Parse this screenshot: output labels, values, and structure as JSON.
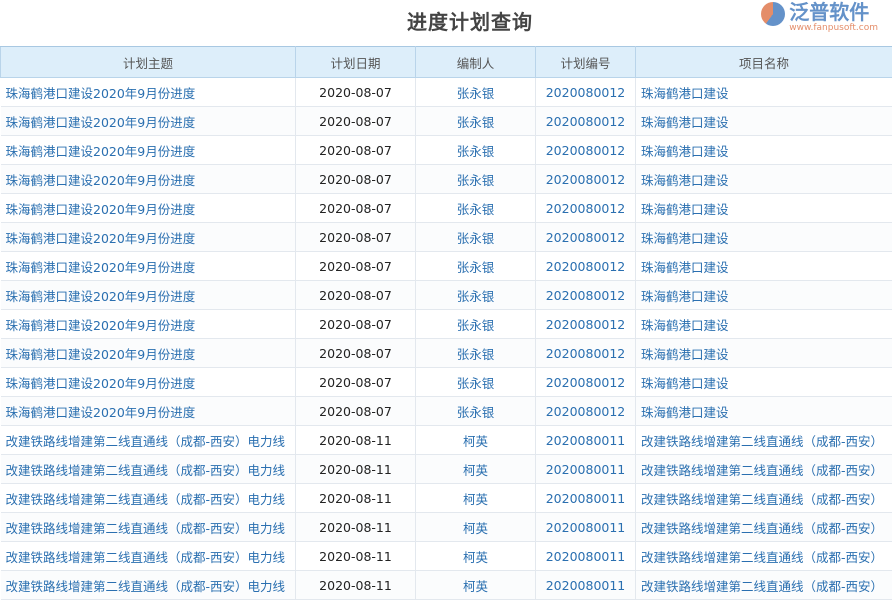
{
  "title": "进度计划查询",
  "columns": [
    "计划主题",
    "计划日期",
    "编制人",
    "计划编号",
    "项目名称"
  ],
  "rows": [
    [
      "珠海鹤港口建设2020年9月份进度",
      "2020-08-07",
      "张永银",
      "2020080012",
      "珠海鹤港口建设"
    ],
    [
      "珠海鹤港口建设2020年9月份进度",
      "2020-08-07",
      "张永银",
      "2020080012",
      "珠海鹤港口建设"
    ],
    [
      "珠海鹤港口建设2020年9月份进度",
      "2020-08-07",
      "张永银",
      "2020080012",
      "珠海鹤港口建设"
    ],
    [
      "珠海鹤港口建设2020年9月份进度",
      "2020-08-07",
      "张永银",
      "2020080012",
      "珠海鹤港口建设"
    ],
    [
      "珠海鹤港口建设2020年9月份进度",
      "2020-08-07",
      "张永银",
      "2020080012",
      "珠海鹤港口建设"
    ],
    [
      "珠海鹤港口建设2020年9月份进度",
      "2020-08-07",
      "张永银",
      "2020080012",
      "珠海鹤港口建设"
    ],
    [
      "珠海鹤港口建设2020年9月份进度",
      "2020-08-07",
      "张永银",
      "2020080012",
      "珠海鹤港口建设"
    ],
    [
      "珠海鹤港口建设2020年9月份进度",
      "2020-08-07",
      "张永银",
      "2020080012",
      "珠海鹤港口建设"
    ],
    [
      "珠海鹤港口建设2020年9月份进度",
      "2020-08-07",
      "张永银",
      "2020080012",
      "珠海鹤港口建设"
    ],
    [
      "珠海鹤港口建设2020年9月份进度",
      "2020-08-07",
      "张永银",
      "2020080012",
      "珠海鹤港口建设"
    ],
    [
      "珠海鹤港口建设2020年9月份进度",
      "2020-08-07",
      "张永银",
      "2020080012",
      "珠海鹤港口建设"
    ],
    [
      "珠海鹤港口建设2020年9月份进度",
      "2020-08-07",
      "张永银",
      "2020080012",
      "珠海鹤港口建设"
    ],
    [
      "改建铁路线增建第二线直通线（成都-西安）电力线",
      "2020-08-11",
      "柯英",
      "2020080011",
      "改建铁路线增建第二线直通线（成都-西安）"
    ],
    [
      "改建铁路线增建第二线直通线（成都-西安）电力线",
      "2020-08-11",
      "柯英",
      "2020080011",
      "改建铁路线增建第二线直通线（成都-西安）"
    ],
    [
      "改建铁路线增建第二线直通线（成都-西安）电力线",
      "2020-08-11",
      "柯英",
      "2020080011",
      "改建铁路线增建第二线直通线（成都-西安）"
    ],
    [
      "改建铁路线增建第二线直通线（成都-西安）电力线",
      "2020-08-11",
      "柯英",
      "2020080011",
      "改建铁路线增建第二线直通线（成都-西安）"
    ],
    [
      "改建铁路线增建第二线直通线（成都-西安）电力线",
      "2020-08-11",
      "柯英",
      "2020080011",
      "改建铁路线增建第二线直通线（成都-西安）"
    ],
    [
      "改建铁路线增建第二线直通线（成都-西安）电力线",
      "2020-08-11",
      "柯英",
      "2020080011",
      "改建铁路线增建第二线直通线（成都-西安）"
    ]
  ],
  "watermark": {
    "text": "泛普软件",
    "url": "www.fanpusoft.com"
  }
}
